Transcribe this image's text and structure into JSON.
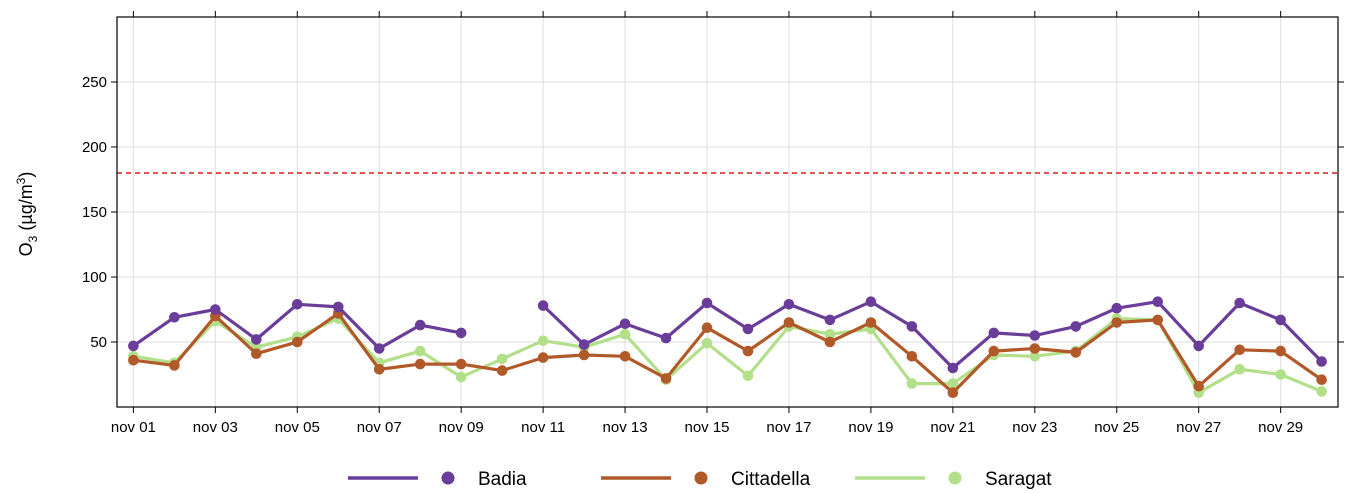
{
  "chart_data": {
    "type": "line",
    "ylabel": {
      "base": "O",
      "sub": "3",
      "unit_pre": " (µg/m",
      "sup": "3",
      "unit_post": ")"
    },
    "ylim": [
      0,
      300
    ],
    "xlim_days": [
      0.6,
      30.4
    ],
    "y_ticks": [
      50,
      100,
      150,
      200,
      250
    ],
    "x_ticks": [
      {
        "day": 1,
        "label": "nov 01"
      },
      {
        "day": 3,
        "label": "nov 03"
      },
      {
        "day": 5,
        "label": "nov 05"
      },
      {
        "day": 7,
        "label": "nov 07"
      },
      {
        "day": 9,
        "label": "nov 09"
      },
      {
        "day": 11,
        "label": "nov 11"
      },
      {
        "day": 13,
        "label": "nov 13"
      },
      {
        "day": 15,
        "label": "nov 15"
      },
      {
        "day": 17,
        "label": "nov 17"
      },
      {
        "day": 19,
        "label": "nov 19"
      },
      {
        "day": 21,
        "label": "nov 21"
      },
      {
        "day": 23,
        "label": "nov 23"
      },
      {
        "day": 25,
        "label": "nov 25"
      },
      {
        "day": 27,
        "label": "nov 27"
      },
      {
        "day": 29,
        "label": "nov 29"
      }
    ],
    "threshold": {
      "value": 180,
      "color": "#e41a1c",
      "style": "dashed"
    },
    "grid": true,
    "legend_position": "bottom",
    "x": [
      1,
      2,
      3,
      4,
      5,
      6,
      7,
      8,
      9,
      10,
      11,
      12,
      13,
      14,
      15,
      16,
      17,
      18,
      19,
      20,
      21,
      22,
      23,
      24,
      25,
      26,
      27,
      28,
      29,
      30
    ],
    "series": [
      {
        "name": "Badia",
        "color": "#6a3d9a",
        "values": [
          47,
          69,
          75,
          52,
          79,
          77,
          45,
          63,
          57,
          null,
          78,
          48,
          64,
          53,
          80,
          60,
          79,
          67,
          81,
          62,
          30,
          57,
          55,
          62,
          76,
          81,
          47,
          80,
          67,
          35
        ]
      },
      {
        "name": "Cittadella",
        "color": "#b15928",
        "values": [
          36,
          32,
          70,
          41,
          50,
          72,
          29,
          33,
          33,
          28,
          38,
          40,
          39,
          22,
          61,
          43,
          65,
          50,
          65,
          39,
          11,
          43,
          45,
          42,
          65,
          67,
          16,
          44,
          43,
          21
        ]
      },
      {
        "name": "Saragat",
        "color": "#b2df8a",
        "values": [
          39,
          34,
          66,
          46,
          54,
          68,
          34,
          43,
          23,
          37,
          51,
          46,
          56,
          21,
          49,
          24,
          62,
          56,
          60,
          18,
          18,
          40,
          39,
          43,
          68,
          67,
          11,
          29,
          25,
          12
        ]
      }
    ]
  }
}
